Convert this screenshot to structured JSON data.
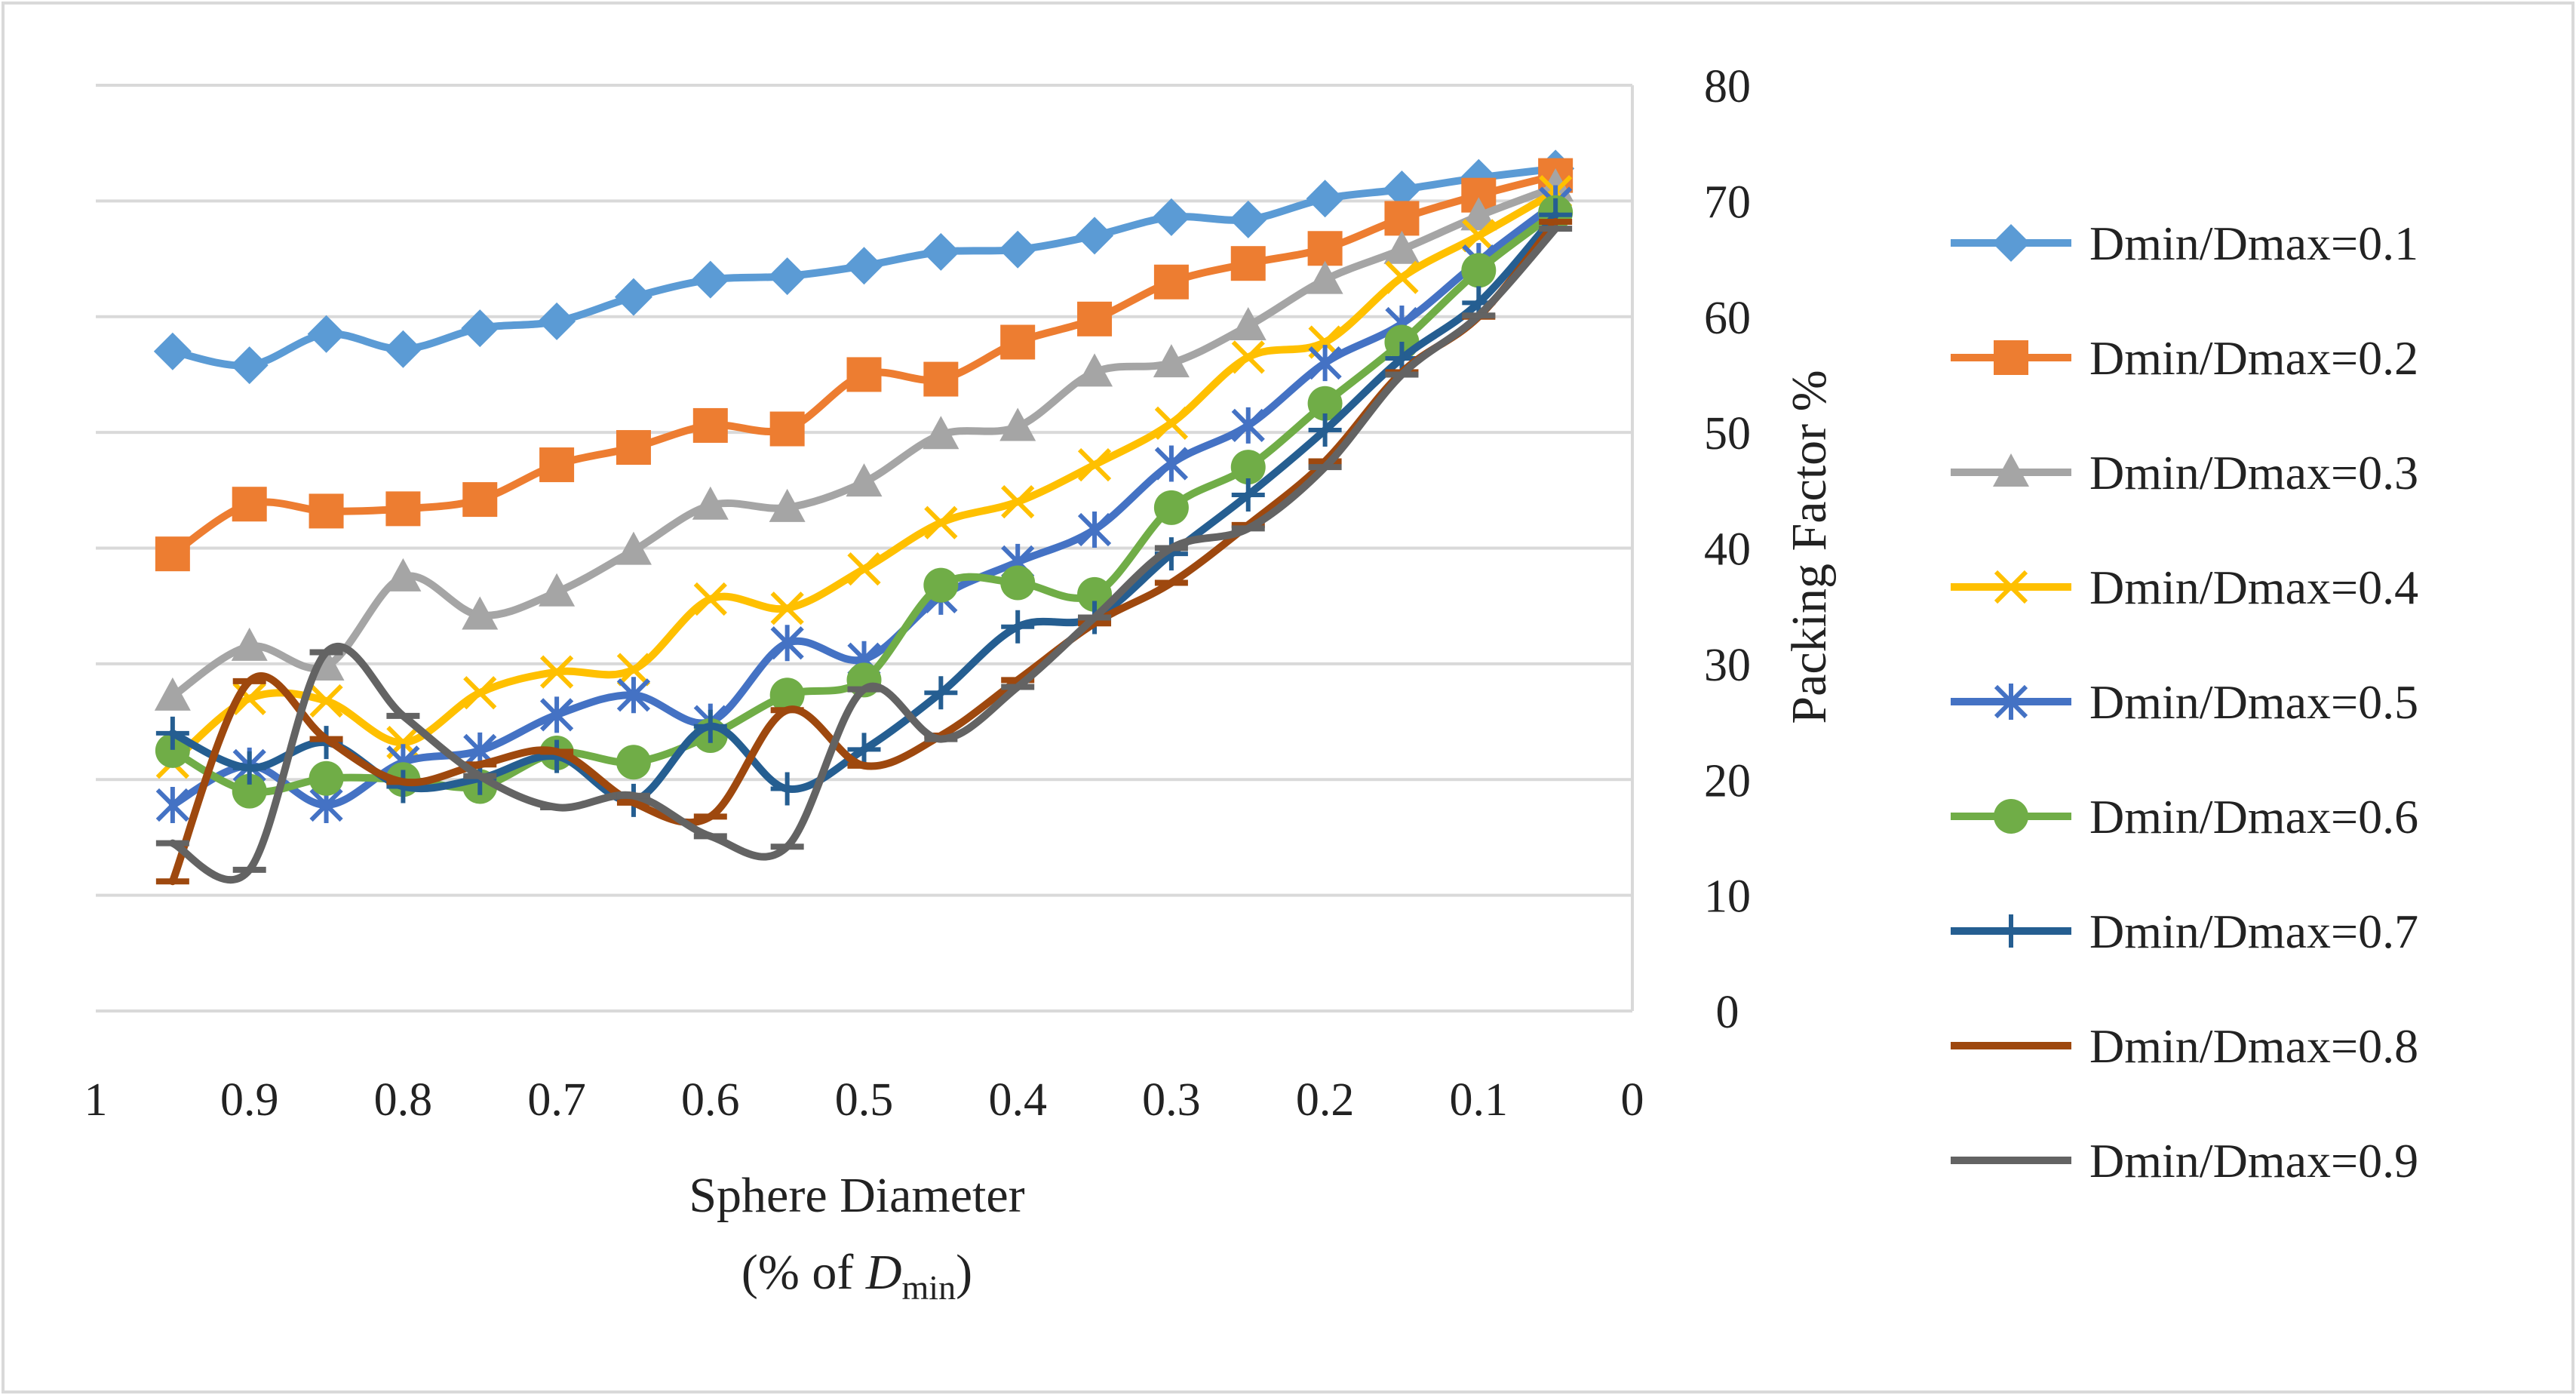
{
  "chart_data": {
    "type": "line",
    "title": "",
    "xlabel_line1": "Sphere Diameter",
    "xlabel_line2_prefix": "(% of ",
    "xlabel_line2_var": "D",
    "xlabel_line2_sub": "min",
    "xlabel_line2_suffix": ")",
    "ylabel": "Packing Factor %",
    "xlim": [
      1,
      0
    ],
    "ylim": [
      0,
      80
    ],
    "x_ticks": [
      1,
      0.9,
      0.8,
      0.7,
      0.6,
      0.5,
      0.4,
      0.3,
      0.2,
      0.1,
      0
    ],
    "x_tick_labels": [
      "1",
      "0.9",
      "0.8",
      "0.7",
      "0.6",
      "0.5",
      "0.4",
      "0.3",
      "0.2",
      "0.1",
      "0"
    ],
    "y_ticks": [
      0,
      10,
      20,
      30,
      40,
      50,
      60,
      70,
      80
    ],
    "y_tick_labels": [
      "0",
      "10",
      "20",
      "30",
      "40",
      "50",
      "60",
      "70",
      "80"
    ],
    "grid": "horizontal",
    "y_axis_side": "right",
    "legend_position": "right",
    "x": [
      0.95,
      0.9,
      0.85,
      0.8,
      0.75,
      0.7,
      0.65,
      0.6,
      0.55,
      0.5,
      0.45,
      0.4,
      0.35,
      0.3,
      0.25,
      0.2,
      0.15,
      0.1,
      0.05
    ],
    "series": [
      {
        "name": "Dmin/Dmax=0.1",
        "color": "#5B9BD5",
        "marker": "diamond",
        "values": [
          57,
          55.8,
          58.5,
          57.2,
          59,
          59.6,
          61.7,
          63.2,
          63.5,
          64.4,
          65.6,
          65.8,
          67,
          68.6,
          68.4,
          70.2,
          71,
          72,
          72.8
        ]
      },
      {
        "name": "Dmin/Dmax=0.2",
        "color": "#ED7D31",
        "marker": "square",
        "values": [
          39.5,
          43.8,
          43.2,
          43.4,
          44.2,
          47.2,
          48.7,
          50.6,
          50.3,
          55,
          54.6,
          57.8,
          59.8,
          63,
          64.6,
          65.9,
          68.5,
          70.5,
          72.2
        ]
      },
      {
        "name": "Dmin/Dmax=0.3",
        "color": "#A5A5A5",
        "marker": "triangle",
        "values": [
          27.2,
          31.5,
          29.8,
          37.5,
          34.2,
          36.2,
          39.8,
          43.7,
          43.5,
          45.7,
          49.8,
          50.5,
          55.2,
          56,
          59.2,
          63.2,
          65.8,
          68.7,
          71.2
        ]
      },
      {
        "name": "Dmin/Dmax=0.4",
        "color": "#FFC000",
        "marker": "x",
        "values": [
          21.5,
          27,
          26.8,
          23.2,
          27.5,
          29.3,
          29.5,
          35.6,
          34.8,
          38.2,
          42.2,
          44,
          47.2,
          50.8,
          56.5,
          57.8,
          63.4,
          67,
          70.8
        ]
      },
      {
        "name": "Dmin/Dmax=0.5",
        "color": "#4472C4",
        "marker": "star",
        "values": [
          17.8,
          21.2,
          17.8,
          21.5,
          22.5,
          25.6,
          27.3,
          25,
          31.8,
          30.4,
          35.8,
          38.8,
          41.6,
          47.3,
          50.6,
          56,
          59.4,
          64.8,
          69.8
        ]
      },
      {
        "name": "Dmin/Dmax=0.6",
        "color": "#70AD47",
        "marker": "circle",
        "values": [
          22.5,
          19,
          20.1,
          20,
          19.4,
          22.3,
          21.5,
          23.8,
          27.3,
          28.6,
          36.8,
          37,
          36,
          43.5,
          47,
          52.5,
          57.8,
          64,
          69
        ]
      },
      {
        "name": "Dmin/Dmax=0.7",
        "color": "#255E91",
        "marker": "plus",
        "values": [
          24,
          21,
          23.2,
          19.4,
          20.1,
          22,
          18.2,
          24.6,
          19.2,
          22.6,
          27.5,
          33.2,
          34,
          39.5,
          44.6,
          50.2,
          56.4,
          61.2,
          68.8
        ]
      },
      {
        "name": "Dmin/Dmax=0.8",
        "color": "#9E480E",
        "marker": "dash",
        "values": [
          11.2,
          28.5,
          23.5,
          19.8,
          21.3,
          22.4,
          18,
          16.8,
          26,
          21.2,
          23.8,
          28.6,
          33.5,
          37,
          42,
          47.5,
          55.2,
          60,
          68.2
        ]
      },
      {
        "name": "Dmin/Dmax=0.9",
        "color": "#636363",
        "marker": "dash",
        "values": [
          14.5,
          12.2,
          31,
          25.5,
          20.3,
          17.6,
          18.6,
          15.1,
          14.2,
          27.8,
          23.5,
          28,
          34,
          40,
          41.7,
          47,
          55,
          60.1,
          67.6
        ]
      }
    ]
  }
}
